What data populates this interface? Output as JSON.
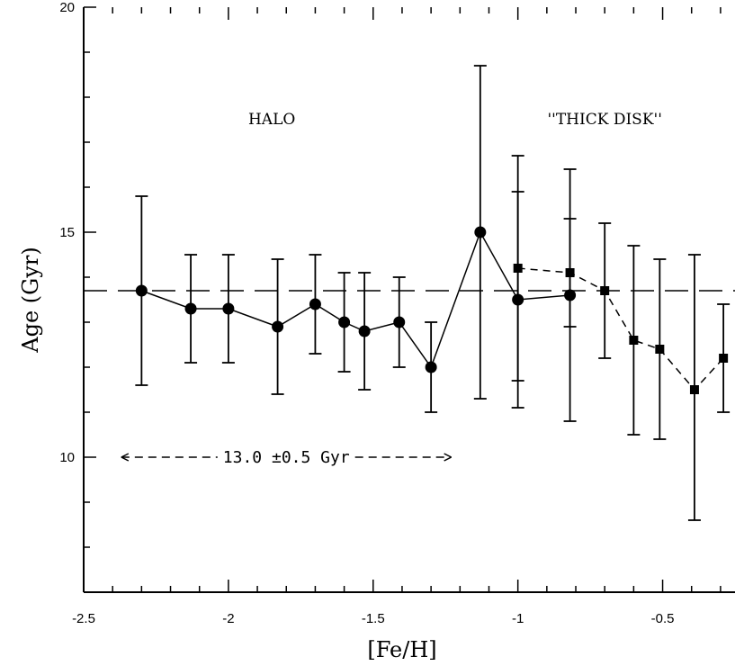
{
  "chart_data": {
    "type": "scatter",
    "title": "",
    "xlabel": "[Fe/H]",
    "ylabel": "Age (Gyr)",
    "xlim": [
      -2.5,
      -0.25
    ],
    "ylim": [
      7,
      20
    ],
    "x_ticks": [
      -2.5,
      -2,
      -1.5,
      -1,
      -0.5
    ],
    "x_tick_labels": [
      "-2.5",
      "-2",
      "-1.5",
      "-1",
      "-0.5"
    ],
    "y_ticks": [
      10,
      15,
      20
    ],
    "y_tick_labels": [
      "10",
      "15",
      "20"
    ],
    "reference_line": {
      "y": 13.7,
      "style": "long-dashed"
    },
    "series": [
      {
        "marker": "circle",
        "line": "solid",
        "x": [
          -2.3,
          -2.13,
          -2.0,
          -1.83,
          -1.7,
          -1.6,
          -1.53,
          -1.41,
          -1.3,
          -1.13,
          -1.0,
          -0.82
        ],
        "y": [
          13.7,
          13.3,
          13.3,
          12.9,
          13.4,
          13.0,
          12.8,
          13.0,
          12.0,
          15.0,
          13.5,
          13.6
        ],
        "yerr_low": [
          11.6,
          12.1,
          12.1,
          11.4,
          12.3,
          11.9,
          11.5,
          12.0,
          11.0,
          11.3,
          11.7,
          12.9
        ],
        "yerr_high": [
          15.8,
          14.5,
          14.5,
          14.4,
          14.5,
          14.1,
          14.1,
          14.0,
          13.0,
          18.7,
          15.9,
          15.3
        ]
      },
      {
        "marker": "square",
        "line": "dashed",
        "x": [
          -1.0,
          -0.82,
          -0.7,
          -0.6,
          -0.51,
          -0.39,
          -0.29
        ],
        "y": [
          14.2,
          14.1,
          13.7,
          12.6,
          12.4,
          11.5,
          12.2
        ],
        "yerr_low": [
          11.1,
          10.8,
          12.2,
          10.5,
          10.4,
          8.6,
          11.0
        ],
        "yerr_high": [
          16.7,
          16.4,
          15.2,
          14.7,
          14.4,
          14.5,
          13.4
        ]
      }
    ],
    "annotations": [
      {
        "text": "HALO",
        "x": -1.85,
        "y": 17.4
      },
      {
        "text": "''THICK DISK''",
        "x": -0.7,
        "y": 17.4
      },
      {
        "text": "13.0 ±0.5 Gyr",
        "x": -1.8,
        "y": 10.0,
        "arrow_from": -2.37,
        "arrow_to": -1.23
      }
    ]
  }
}
